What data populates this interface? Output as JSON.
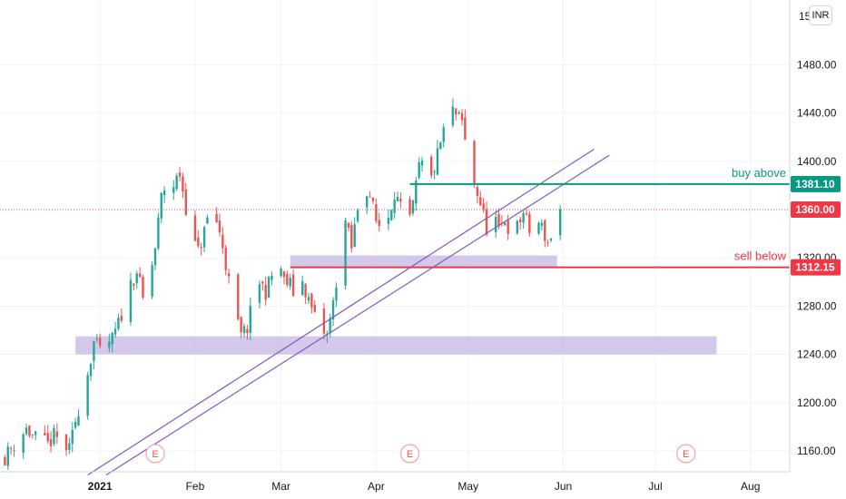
{
  "chart_data": {
    "type": "candlestick",
    "currency": "INR",
    "y_axis": {
      "min": 1140,
      "max": 1520,
      "ticks": [
        "1160.00",
        "1200.00",
        "1240.00",
        "1280.00",
        "1320.00",
        "1360.00",
        "1400.00",
        "1440.00",
        "1480.00"
      ],
      "top_label_partial": "15"
    },
    "x_axis": {
      "labels": [
        "2021",
        "Feb",
        "Mar",
        "Apr",
        "May",
        "Jun",
        "Jul",
        "Aug"
      ],
      "dates": [
        "2021-01-01",
        "2021-02-01",
        "2021-03-01",
        "2021-04-01",
        "2021-05-01",
        "2021-06-01",
        "2021-07-01",
        "2021-08-01"
      ]
    },
    "last_price": {
      "value": 1360.0,
      "label": "1360.00"
    },
    "levels": [
      {
        "name": "buy above",
        "value": 1381.1,
        "label": "1381.10",
        "color": "#089981",
        "from": "2021-04-12"
      },
      {
        "name": "sell below",
        "value": 1312.15,
        "label": "1312.15",
        "color": "#f23645",
        "from": "2021-03-04"
      }
    ],
    "zones": [
      {
        "from": "2020-12-24",
        "to": "2021-07-21",
        "low": 1240,
        "high": 1255
      },
      {
        "from": "2021-03-04",
        "to": "2021-05-30",
        "low": 1313,
        "high": 1322
      }
    ],
    "trend_channel": [
      {
        "from": [
          "2020-12-28",
          1140
        ],
        "to": [
          "2021-06-11",
          1410
        ]
      },
      {
        "from": [
          "2021-01-03",
          1140
        ],
        "to": [
          "2021-06-16",
          1405
        ]
      }
    ],
    "earnings_markers": [
      {
        "date": "2021-01-19",
        "label": "E"
      },
      {
        "date": "2021-04-12",
        "label": "E"
      },
      {
        "date": "2021-07-11",
        "label": "E"
      }
    ],
    "series_close": [
      [
        "2020-12-01",
        1155
      ],
      [
        "2020-12-03",
        1162
      ],
      [
        "2020-12-05",
        1170
      ],
      [
        "2020-12-08",
        1178
      ],
      [
        "2020-12-10",
        1172
      ],
      [
        "2020-12-13",
        1168
      ],
      [
        "2020-12-15",
        1165
      ],
      [
        "2020-12-17",
        1172
      ],
      [
        "2020-12-19",
        1168
      ],
      [
        "2020-12-22",
        1160
      ],
      [
        "2020-12-24",
        1185
      ],
      [
        "2020-12-26",
        1205
      ],
      [
        "2020-12-28",
        1225
      ],
      [
        "2020-12-30",
        1250
      ],
      [
        "2021-01-01",
        1242
      ],
      [
        "2021-01-03",
        1248
      ],
      [
        "2021-01-05",
        1252
      ],
      [
        "2021-01-07",
        1265
      ],
      [
        "2021-01-09",
        1282
      ],
      [
        "2021-01-11",
        1298
      ],
      [
        "2021-01-13",
        1310
      ],
      [
        "2021-01-15",
        1285
      ],
      [
        "2021-01-17",
        1300
      ],
      [
        "2021-01-19",
        1328
      ],
      [
        "2021-01-21",
        1370
      ],
      [
        "2021-01-23",
        1385
      ],
      [
        "2021-01-25",
        1380
      ],
      [
        "2021-01-27",
        1390
      ],
      [
        "2021-01-29",
        1362
      ],
      [
        "2021-01-31",
        1335
      ],
      [
        "2021-02-02",
        1325
      ],
      [
        "2021-02-04",
        1342
      ],
      [
        "2021-02-06",
        1362
      ],
      [
        "2021-02-08",
        1350
      ],
      [
        "2021-02-10",
        1330
      ],
      [
        "2021-02-12",
        1300
      ],
      [
        "2021-02-14",
        1275
      ],
      [
        "2021-02-16",
        1255
      ],
      [
        "2021-02-18",
        1262
      ],
      [
        "2021-02-20",
        1285
      ],
      [
        "2021-02-22",
        1300
      ],
      [
        "2021-02-24",
        1292
      ],
      [
        "2021-02-26",
        1305
      ],
      [
        "2021-02-28",
        1322
      ],
      [
        "2021-03-02",
        1300
      ],
      [
        "2021-03-04",
        1298
      ],
      [
        "2021-03-06",
        1285
      ],
      [
        "2021-03-08",
        1300
      ],
      [
        "2021-03-10",
        1285
      ],
      [
        "2021-03-12",
        1270
      ],
      [
        "2021-03-14",
        1262
      ],
      [
        "2021-03-16",
        1255
      ],
      [
        "2021-03-18",
        1282
      ],
      [
        "2021-03-20",
        1320
      ],
      [
        "2021-03-22",
        1350
      ],
      [
        "2021-03-24",
        1328
      ],
      [
        "2021-03-26",
        1362
      ],
      [
        "2021-03-28",
        1382
      ],
      [
        "2021-03-30",
        1372
      ],
      [
        "2021-04-01",
        1350
      ],
      [
        "2021-04-03",
        1345
      ],
      [
        "2021-04-05",
        1355
      ],
      [
        "2021-04-07",
        1375
      ],
      [
        "2021-04-09",
        1360
      ],
      [
        "2021-04-11",
        1342
      ],
      [
        "2021-04-13",
        1362
      ],
      [
        "2021-04-15",
        1395
      ],
      [
        "2021-04-17",
        1398
      ],
      [
        "2021-04-19",
        1385
      ],
      [
        "2021-04-21",
        1405
      ],
      [
        "2021-04-23",
        1425
      ],
      [
        "2021-04-25",
        1445
      ],
      [
        "2021-04-27",
        1438
      ],
      [
        "2021-04-29",
        1432
      ],
      [
        "2021-05-01",
        1400
      ],
      [
        "2021-05-03",
        1382
      ],
      [
        "2021-05-05",
        1365
      ],
      [
        "2021-05-07",
        1345
      ],
      [
        "2021-05-09",
        1362
      ],
      [
        "2021-05-11",
        1340
      ],
      [
        "2021-05-13",
        1352
      ],
      [
        "2021-05-15",
        1340
      ],
      [
        "2021-05-17",
        1345
      ],
      [
        "2021-05-19",
        1358
      ],
      [
        "2021-05-21",
        1342
      ],
      [
        "2021-05-23",
        1352
      ],
      [
        "2021-05-25",
        1345
      ],
      [
        "2021-05-27",
        1332
      ],
      [
        "2021-05-29",
        1345
      ],
      [
        "2021-05-31",
        1360
      ]
    ]
  }
}
